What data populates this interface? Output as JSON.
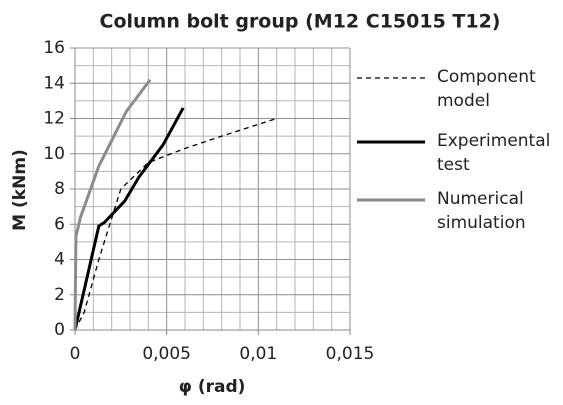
{
  "chart_data": {
    "type": "line",
    "title": "Column bolt group (M12 C15015 T12)",
    "xlabel": "φ (rad)",
    "ylabel": "M (kNm)",
    "xlim": [
      0,
      0.015
    ],
    "ylim": [
      0,
      16
    ],
    "xticks": [
      0,
      {
        "value": 0.005,
        "label": "0,005"
      },
      {
        "value": 0.01,
        "label": "0,01"
      },
      {
        "value": 0.015,
        "label": "0,015"
      }
    ],
    "yticks": [
      0,
      2,
      4,
      6,
      8,
      10,
      12,
      14,
      16
    ],
    "x_minor_ticks": [
      0.001,
      0.002,
      0.003,
      0.004,
      0.006,
      0.007,
      0.008,
      0.009,
      0.011,
      0.012,
      0.013,
      0.014
    ],
    "y_minor_ticks": [
      1,
      3,
      5,
      7,
      9,
      11,
      13,
      15
    ],
    "grid": true,
    "legend": "right",
    "series": [
      {
        "name": "Component model",
        "color": "#000000",
        "style": "dashed",
        "width": 1.3,
        "x": [
          0,
          0.0005,
          0.0013,
          0.0025,
          0.004,
          0.006,
          0.008,
          0.011
        ],
        "values": [
          0,
          1,
          4,
          8,
          9.5,
          10.3,
          11,
          12
        ]
      },
      {
        "name": "Experimental test",
        "color": "#000000",
        "style": "solid",
        "width": 3,
        "x": [
          0,
          0.0013,
          0.0016,
          0.0027,
          0.0035,
          0.0048,
          0.0059
        ],
        "values": [
          0,
          5.9,
          6.1,
          7.3,
          8.7,
          10.5,
          12.6
        ]
      },
      {
        "name": "Numerical simulation",
        "color": "#8c8c8c",
        "style": "solid",
        "width": 3,
        "x": [
          0,
          5e-05,
          0.0003,
          0.0013,
          0.0028,
          0.0041
        ],
        "values": [
          0,
          5.3,
          6.4,
          9.3,
          12.4,
          14.2
        ]
      }
    ]
  }
}
